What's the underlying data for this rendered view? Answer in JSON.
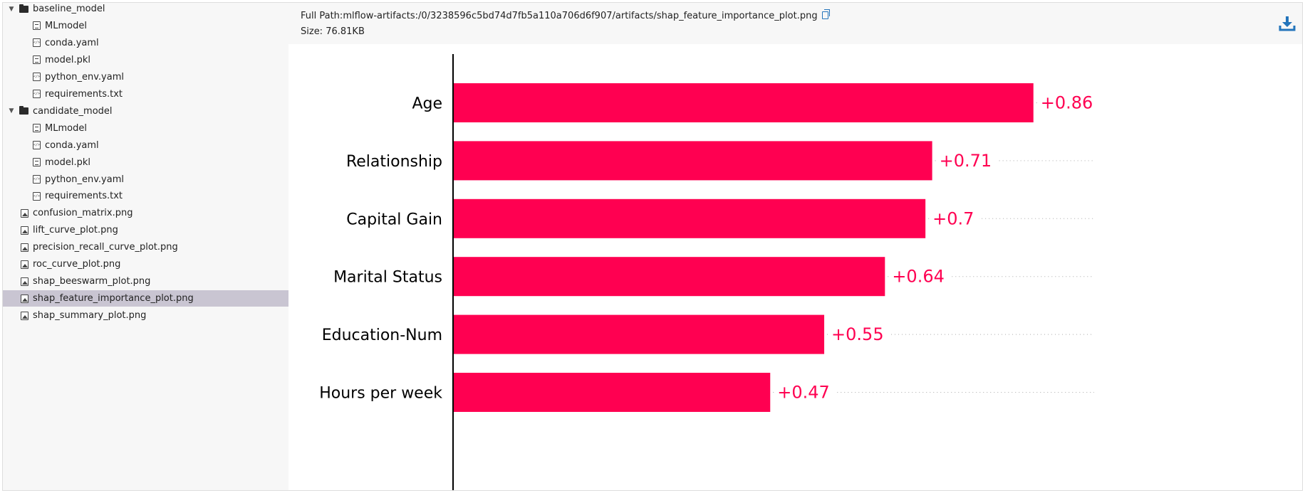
{
  "tree": [
    {
      "label": "baseline_model",
      "type": "folder",
      "level": 0,
      "expanded": true
    },
    {
      "label": "MLmodel",
      "type": "file-txt",
      "level": 1
    },
    {
      "label": "conda.yaml",
      "type": "file-code",
      "level": 1
    },
    {
      "label": "model.pkl",
      "type": "file-txt",
      "level": 1
    },
    {
      "label": "python_env.yaml",
      "type": "file-code",
      "level": 1
    },
    {
      "label": "requirements.txt",
      "type": "file-code",
      "level": 1
    },
    {
      "label": "candidate_model",
      "type": "folder",
      "level": 0,
      "expanded": true
    },
    {
      "label": "MLmodel",
      "type": "file-txt",
      "level": 1
    },
    {
      "label": "conda.yaml",
      "type": "file-code",
      "level": 1
    },
    {
      "label": "model.pkl",
      "type": "file-txt",
      "level": 1
    },
    {
      "label": "python_env.yaml",
      "type": "file-code",
      "level": 1
    },
    {
      "label": "requirements.txt",
      "type": "file-code",
      "level": 1
    },
    {
      "label": "confusion_matrix.png",
      "type": "file-img",
      "level": 0
    },
    {
      "label": "lift_curve_plot.png",
      "type": "file-img",
      "level": 0
    },
    {
      "label": "precision_recall_curve_plot.png",
      "type": "file-img",
      "level": 0
    },
    {
      "label": "roc_curve_plot.png",
      "type": "file-img",
      "level": 0
    },
    {
      "label": "shap_beeswarm_plot.png",
      "type": "file-img",
      "level": 0
    },
    {
      "label": "shap_feature_importance_plot.png",
      "type": "file-img",
      "level": 0,
      "selected": true
    },
    {
      "label": "shap_summary_plot.png",
      "type": "file-img",
      "level": 0
    }
  ],
  "header": {
    "path_label": "Full Path:",
    "path_value": "mlflow-artifacts:/0/3238596c5bd74d7fb5a110a706d6f907/artifacts/shap_feature_importance_plot.png",
    "size_label": "Size:",
    "size_value": "76.81KB",
    "copy_icon": "copy-icon",
    "download_icon": "download-icon"
  },
  "chart_data": {
    "type": "bar",
    "orientation": "horizontal",
    "categories": [
      "Age",
      "Relationship",
      "Capital Gain",
      "Marital Status",
      "Education-Num",
      "Hours per week"
    ],
    "values": [
      0.86,
      0.71,
      0.7,
      0.64,
      0.55,
      0.47
    ],
    "value_labels": [
      "+0.86",
      "+0.71",
      "+0.7",
      "+0.64",
      "+0.55",
      "+0.47"
    ],
    "bar_color": "#ff0051",
    "label_color": "#ff0051",
    "xlim": [
      0,
      0.95
    ],
    "grid": false
  },
  "colors": {
    "selected_row": "#c9c5d2",
    "sidebar_bg": "#f7f7f7",
    "accent": "#2374bb"
  }
}
